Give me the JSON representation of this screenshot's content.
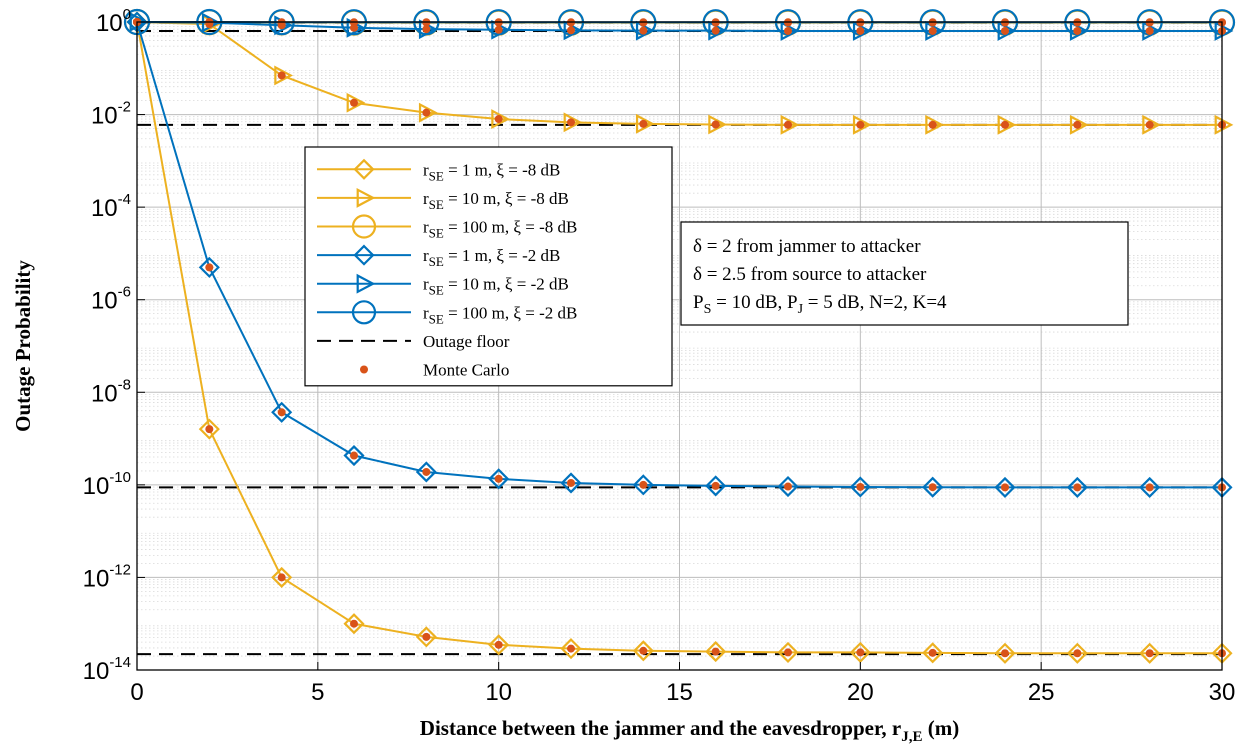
{
  "chart_data": {
    "type": "line",
    "y_scale": "log",
    "grid": true,
    "legend_position": "center-left",
    "xlabel": "Distance between the jammer and the eavesdropper, r",
    "xlabel_subscript": "J,E",
    "xlabel_unit": " (m)",
    "ylabel": "Outage Probability",
    "xlim": [
      0,
      30
    ],
    "ylim": [
      1e-14,
      1
    ],
    "x_ticks": [
      0,
      5,
      10,
      15,
      20,
      25,
      30
    ],
    "y_ticks": [
      {
        "value": 1.0,
        "base": "10",
        "exp": "0"
      },
      {
        "value": 0.01,
        "base": "10",
        "exp": "-2"
      },
      {
        "value": 0.0001,
        "base": "10",
        "exp": "-4"
      },
      {
        "value": 1e-06,
        "base": "10",
        "exp": "-6"
      },
      {
        "value": 1e-08,
        "base": "10",
        "exp": "-8"
      },
      {
        "value": 1e-10,
        "base": "10",
        "exp": "-10"
      },
      {
        "value": 1e-12,
        "base": "10",
        "exp": "-12"
      },
      {
        "value": 1e-14,
        "base": "10",
        "exp": "-14"
      }
    ],
    "x": [
      0,
      2,
      4,
      6,
      8,
      10,
      12,
      14,
      16,
      18,
      20,
      22,
      24,
      26,
      28,
      30
    ],
    "series": [
      {
        "id": "r1-m8",
        "legend": {
          "pre": "r",
          "sub": "SE",
          "post": " = 1 m, ξ = -8 dB"
        },
        "color": "#EDB120",
        "marker": "diamond",
        "values": [
          1.0,
          1.6e-09,
          1e-12,
          1e-13,
          5.2e-14,
          3.5e-14,
          2.9e-14,
          2.6e-14,
          2.5e-14,
          2.4e-14,
          2.4e-14,
          2.35e-14,
          2.3e-14,
          2.3e-14,
          2.3e-14,
          2.3e-14
        ]
      },
      {
        "id": "r10-m8",
        "legend": {
          "pre": "r",
          "sub": "SE",
          "post": " = 10 m, ξ = -8 dB"
        },
        "color": "#EDB120",
        "marker": "triangle-right",
        "values": [
          1.0,
          0.9,
          0.07,
          0.018,
          0.011,
          0.008,
          0.0068,
          0.0063,
          0.0061,
          0.006,
          0.006,
          0.006,
          0.006,
          0.006,
          0.006,
          0.006
        ]
      },
      {
        "id": "r100-m8",
        "legend": {
          "pre": "r",
          "sub": "SE",
          "post": " = 100 m, ξ = -8 dB"
        },
        "color": "#EDB120",
        "marker": "circle",
        "values": [
          1.0,
          0.99,
          0.98,
          0.97,
          0.97,
          0.97,
          0.97,
          0.97,
          0.97,
          0.97,
          0.97,
          0.97,
          0.97,
          0.97,
          0.97,
          0.97
        ]
      },
      {
        "id": "r1-m2",
        "legend": {
          "pre": "r",
          "sub": "SE",
          "post": " = 1 m, ξ = -2 dB"
        },
        "color": "#0072BD",
        "marker": "diamond",
        "values": [
          1.0,
          5e-06,
          3.7e-09,
          4.3e-10,
          1.9e-10,
          1.35e-10,
          1.1e-10,
          1e-10,
          9.5e-11,
          9.2e-11,
          9e-11,
          8.9e-11,
          8.8e-11,
          8.8e-11,
          8.8e-11,
          8.8e-11
        ]
      },
      {
        "id": "r10-m2",
        "legend": {
          "pre": "r",
          "sub": "SE",
          "post": " = 10 m, ξ = -2 dB"
        },
        "color": "#0072BD",
        "marker": "triangle-right",
        "values": [
          1.0,
          0.97,
          0.85,
          0.75,
          0.7,
          0.68,
          0.66,
          0.65,
          0.65,
          0.64,
          0.64,
          0.64,
          0.64,
          0.64,
          0.64,
          0.64
        ]
      },
      {
        "id": "r100-m2",
        "legend": {
          "pre": "r",
          "sub": "SE",
          "post": " = 100 m, ξ = -2 dB"
        },
        "color": "#0072BD",
        "marker": "circle",
        "values": [
          1.0,
          1.0,
          0.99,
          0.99,
          0.99,
          0.99,
          0.99,
          0.99,
          0.99,
          0.99,
          0.99,
          0.99,
          0.99,
          0.99,
          0.99,
          0.99
        ]
      }
    ],
    "floors": {
      "legend": "Outage floor",
      "color": "#000000",
      "values": [
        0.97,
        0.64,
        0.006,
        8.8e-11,
        2.2e-14
      ]
    },
    "monte_carlo": {
      "legend": "Monte Carlo",
      "color": "#D95319"
    },
    "annotation": {
      "line1": "δ = 2 from jammer to attacker",
      "line2": "δ = 2.5 from source to attacker",
      "line3": {
        "p1": "P",
        "s1": "S",
        "t1": " = 10 dB, P",
        "s2": "J",
        "t2": " = 5 dB, N=2, K=4"
      }
    }
  }
}
